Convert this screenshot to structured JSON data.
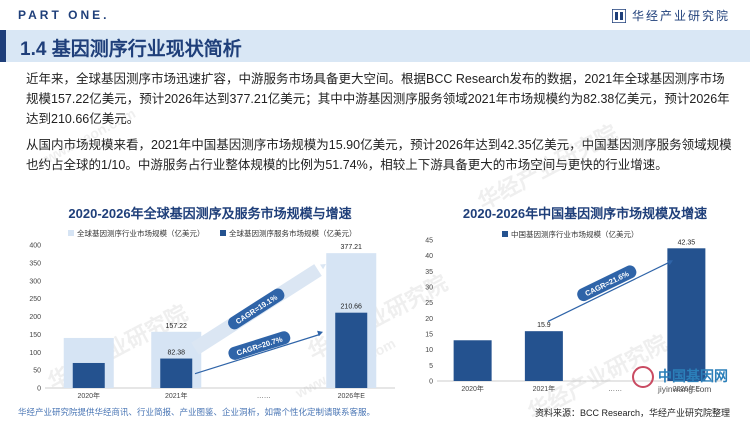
{
  "header": {
    "part": "PART ONE.",
    "brand": "华经产业研究院"
  },
  "section": {
    "title": "1.4  基因测序行业现状简析"
  },
  "paragraphs": [
    "近年来，全球基因测序市场迅速扩容，中游服务市场具备更大空间。根据BCC Research发布的数据，2021年全球基因测序市场规模157.22亿美元，预计2026年达到377.21亿美元；其中中游基因测序服务领域2021年市场规模约为82.38亿美元，预计2026年达到210.66亿美元。",
    "从国内市场规模来看，2021年中国基因测序市场规模为15.90亿美元，预计2026年达到42.35亿美元，中国基因测序服务领域规模也约占全球的1/10。中游服务占行业整体规模的比例为51.74%，相较上下游具备更大的市场空间与更快的行业增速。"
  ],
  "footer": {
    "left": "华经产业研究院提供华经商讯、行业简报、产业图鉴、企业洞析，如需个性化定制请联系客服。",
    "right": "资料来源：BCC Research，华经产业研究院整理"
  },
  "watermark": {
    "text": "华经产业研究院",
    "url": "www.huaon.com"
  },
  "partner_logo": {
    "name": "中国基因网",
    "url": "jiyinwang.com"
  },
  "colors": {
    "brand": "#1f3f7a",
    "light_bar": "#d6e4f4",
    "dark_bar": "#24528f",
    "title_band": "#d9e7f5"
  },
  "chart_data": [
    {
      "type": "bar",
      "title": "2020-2026年全球基因测序及服务市场规模与增速",
      "categories": [
        "2020年",
        "2021年",
        "……",
        "2026年E"
      ],
      "ylim": [
        0,
        400
      ],
      "yticks": [
        0,
        50,
        100,
        150,
        200,
        250,
        300,
        350,
        400
      ],
      "series": [
        {
          "name": "全球基因测序行业市场规模（亿美元）",
          "values": [
            140,
            157.22,
            null,
            377.21
          ],
          "labels": [
            "",
            "157.22",
            "",
            "377.21"
          ],
          "color": "#d6e4f4"
        },
        {
          "name": "全球基因测序服务市场规模（亿美元）",
          "values": [
            70,
            82.38,
            null,
            210.66
          ],
          "labels": [
            "",
            "82.38",
            "",
            "210.66"
          ],
          "color": "#24528f"
        }
      ],
      "annotations": [
        "CAGR=19.1%",
        "CAGR=20.7%"
      ],
      "legend": "top"
    },
    {
      "type": "bar",
      "title": "2020-2026年中国基因测序市场规模及增速",
      "categories": [
        "2020年",
        "2021年",
        "……",
        "2026年E"
      ],
      "ylim": [
        0,
        45
      ],
      "yticks": [
        0,
        5,
        10,
        15,
        20,
        25,
        30,
        35,
        40,
        45
      ],
      "series": [
        {
          "name": "中国基因测序行业市场规模（亿美元）",
          "values": [
            13,
            15.9,
            null,
            42.35
          ],
          "labels": [
            "",
            "15.9",
            "",
            "42.35"
          ],
          "color": "#24528f"
        }
      ],
      "annotations": [
        "CAGR=21.6%"
      ],
      "legend": "top"
    }
  ]
}
